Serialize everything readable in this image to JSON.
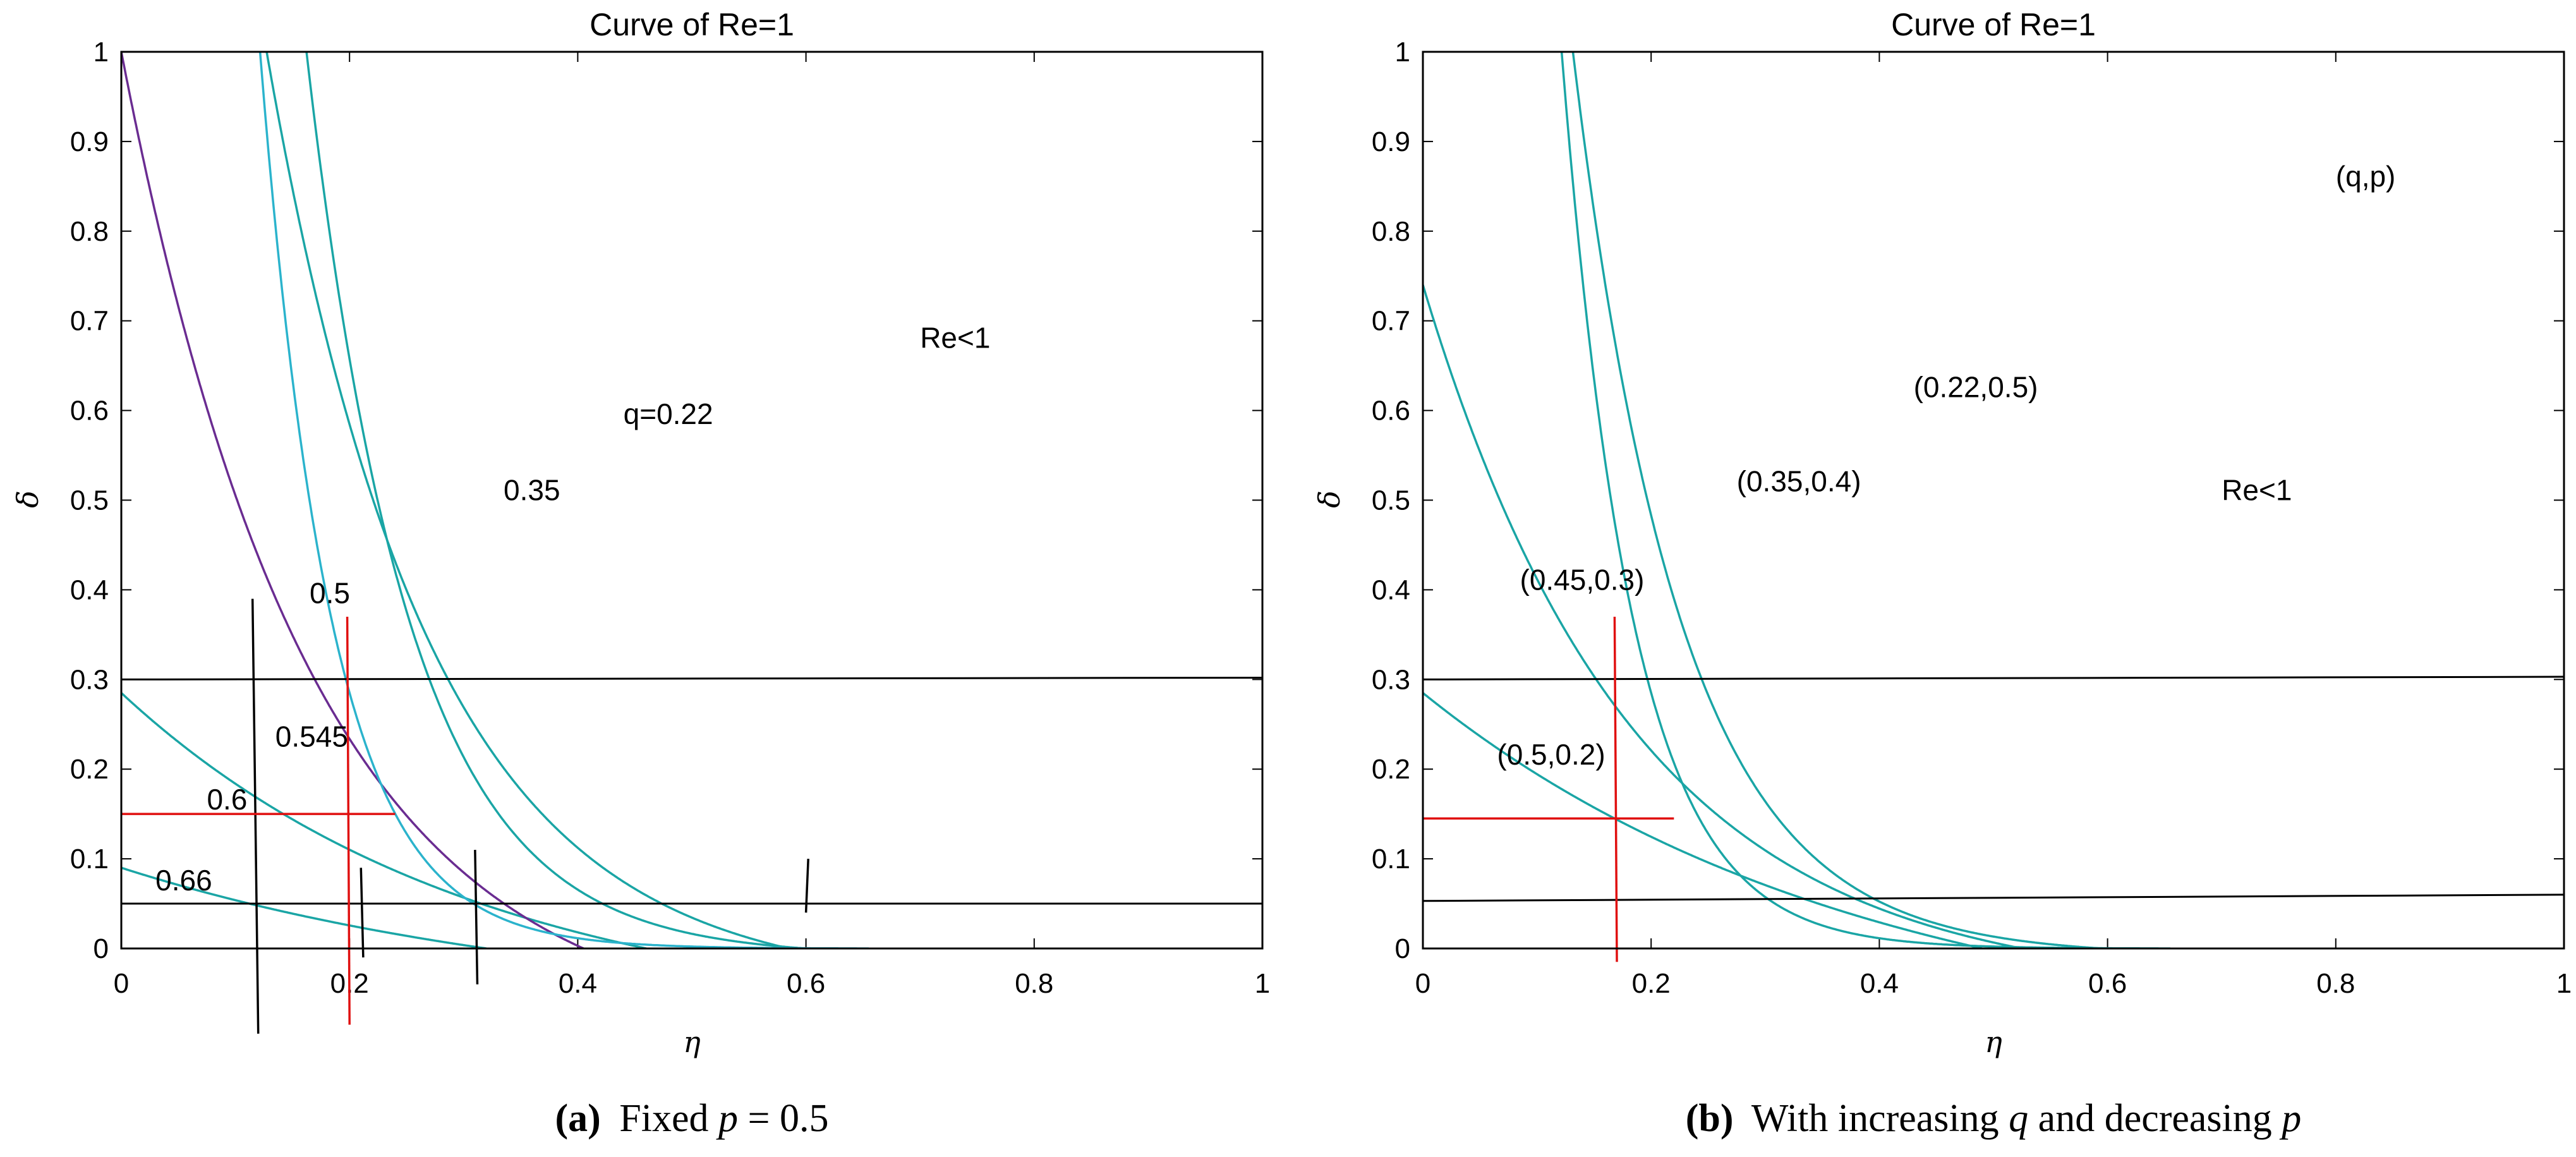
{
  "chart_data": [
    {
      "type": "line",
      "title": "Curve of Re=1",
      "xlabel": "η",
      "ylabel": "δ",
      "xlim": [
        0,
        1
      ],
      "ylim": [
        0,
        1
      ],
      "xticks": [
        "0",
        "0.2",
        "0.4",
        "0.6",
        "0.8",
        "1"
      ],
      "yticks": [
        "0",
        "0.1",
        "0.2",
        "0.3",
        "0.4",
        "0.5",
        "0.6",
        "0.7",
        "0.8",
        "0.9",
        "1"
      ],
      "caption": {
        "label": "(a)",
        "text": "Fixed ",
        "math_var": "p",
        "math_rest": " = 0.5"
      },
      "region_label": {
        "text": "Re<1",
        "x": 0.7,
        "y": 0.67
      },
      "series": [
        {
          "name": "0.66",
          "color": "#1aa5a5",
          "x0": 0.32,
          "y0": 0.09,
          "k": 2.5,
          "label": {
            "text": "0.66",
            "x": 0.03,
            "y": 0.065
          }
        },
        {
          "name": "0.6",
          "color": "#1aa5a5",
          "x0": 0.46,
          "y0": 0.285,
          "k": 3.2,
          "label": {
            "text": "0.6",
            "x": 0.075,
            "y": 0.155
          }
        },
        {
          "name": "0.545",
          "color": "#6a2c91",
          "x0": 0.405,
          "y0": 1.0,
          "k": 6.0,
          "label": {
            "text": "0.545",
            "x": 0.135,
            "y": 0.225
          }
        },
        {
          "name": "0.5",
          "color": "#1aa5a5",
          "x0": 0.585,
          "y0": 2.5,
          "k": 7.0,
          "label": {
            "text": "0.5",
            "x": 0.165,
            "y": 0.385
          }
        },
        {
          "name": "0.35",
          "color": "#1aa5a5",
          "x0": 0.6,
          "y0": 6.0,
          "k": 11.0,
          "label": {
            "text": "0.35",
            "x": 0.335,
            "y": 0.5
          }
        },
        {
          "name": "q=0.22",
          "color": "#2bb3cc",
          "x0": 0.655,
          "y0": 7.0,
          "k": 16.0,
          "label": {
            "text": "q=0.22",
            "x": 0.44,
            "y": 0.585
          }
        }
      ],
      "hlines": [
        {
          "y0": 0.3,
          "y1": 0.302
        },
        {
          "y0": 0.05,
          "y1": 0.05
        }
      ],
      "vsegments": [
        {
          "x0": 0.115,
          "y0": 0.39,
          "x1": 0.12,
          "y1": -0.095,
          "color": "#000000"
        },
        {
          "x0": 0.21,
          "y0": 0.09,
          "x1": 0.212,
          "y1": -0.01,
          "color": "#000000"
        },
        {
          "x0": 0.31,
          "y0": 0.11,
          "x1": 0.312,
          "y1": -0.04,
          "color": "#000000"
        },
        {
          "x0": 0.602,
          "y0": 0.1,
          "x1": 0.6,
          "y1": 0.04,
          "color": "#000000"
        },
        {
          "x0": 0.198,
          "y0": 0.37,
          "x1": 0.2,
          "y1": -0.085,
          "color": "#e01010"
        }
      ],
      "hsegments": [
        {
          "x0": 0.0,
          "x1": 0.24,
          "y": 0.15,
          "color": "#e01010"
        }
      ]
    },
    {
      "type": "line",
      "title": "Curve of Re=1",
      "xlabel": "η",
      "ylabel": "δ",
      "xlim": [
        0,
        1
      ],
      "ylim": [
        0,
        1
      ],
      "xticks": [
        "0",
        "0.2",
        "0.4",
        "0.6",
        "0.8",
        "1"
      ],
      "yticks": [
        "0",
        "0.1",
        "0.2",
        "0.3",
        "0.4",
        "0.5",
        "0.6",
        "0.7",
        "0.8",
        "0.9",
        "1"
      ],
      "caption": {
        "label": "(b)",
        "text": "With increasing ",
        "math_var": "q",
        "mid": " and decreasing ",
        "math_var2": "p"
      },
      "region_label": {
        "text": "Re<1",
        "x": 0.7,
        "y": 0.5
      },
      "legend_label": {
        "text": "(q,p)",
        "x": 0.8,
        "y": 0.85
      },
      "series": [
        {
          "name": "(0.5,0.2)",
          "color": "#1aa5a5",
          "x0": 0.49,
          "y0": 0.285,
          "k": 2.6,
          "label": {
            "text": "(0.5,0.2)",
            "x": 0.065,
            "y": 0.205
          }
        },
        {
          "name": "(0.45,0.3)",
          "color": "#1aa5a5",
          "x0": 0.525,
          "y0": 0.74,
          "k": 5.4,
          "label": {
            "text": "(0.45,0.3)",
            "x": 0.085,
            "y": 0.4
          }
        },
        {
          "name": "(0.35,0.4)",
          "color": "#1aa5a5",
          "x0": 0.595,
          "y0": 4.0,
          "k": 10.5,
          "label": {
            "text": "(0.35,0.4)",
            "x": 0.275,
            "y": 0.51
          }
        },
        {
          "name": "(0.22,0.5)",
          "color": "#1aa5a5",
          "x0": 0.655,
          "y0": 7.0,
          "k": 16.0,
          "label": {
            "text": "(0.22,0.5)",
            "x": 0.43,
            "y": 0.615
          }
        }
      ],
      "hlines": [
        {
          "y0": 0.3,
          "y1": 0.303
        },
        {
          "y0": 0.053,
          "y1": 0.06
        }
      ],
      "vsegments": [
        {
          "x0": 0.168,
          "y0": 0.37,
          "x1": 0.17,
          "y1": -0.015,
          "color": "#e01010"
        }
      ],
      "hsegments": [
        {
          "x0": 0.0,
          "x1": 0.22,
          "y": 0.145,
          "color": "#e01010"
        }
      ]
    }
  ]
}
